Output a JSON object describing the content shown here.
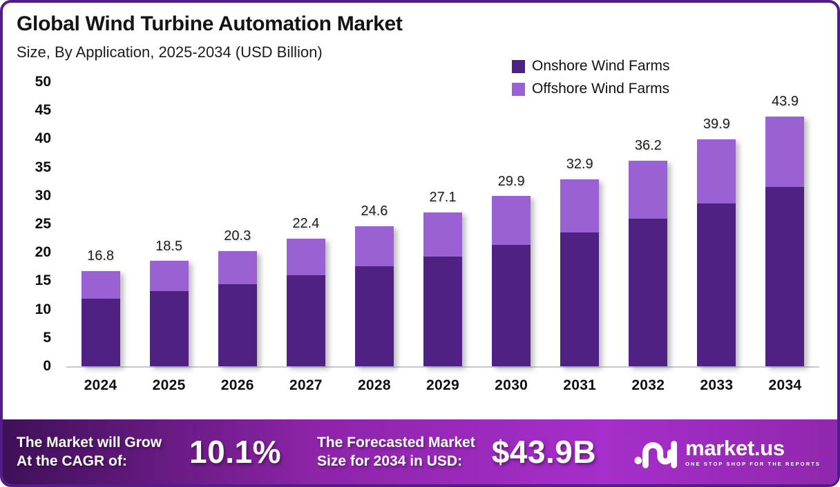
{
  "colors": {
    "frame_border": "#531b8c",
    "onshore": "#4f2182",
    "offshore": "#9a61d2",
    "axis_line": "#c9c9c9",
    "banner_gradient": [
      "#3f1058",
      "#8e24aa",
      "#a62ecb",
      "#9027ad"
    ],
    "banner_text": "#ffffff"
  },
  "chart_data": {
    "type": "bar",
    "stacked": true,
    "title": "Global Wind Turbine Automation Market",
    "subtitle": "Size, By Application, 2025-2034 (USD Billion)",
    "categories": [
      "2024",
      "2025",
      "2026",
      "2027",
      "2028",
      "2029",
      "2030",
      "2031",
      "2032",
      "2033",
      "2034"
    ],
    "series": [
      {
        "name": "Onshore Wind Farms",
        "color": "#4f2182",
        "values": [
          11.9,
          13.2,
          14.5,
          16.0,
          17.6,
          19.3,
          21.3,
          23.5,
          26.0,
          28.6,
          31.5
        ]
      },
      {
        "name": "Offshore Wind Farms",
        "color": "#9a61d2",
        "values": [
          4.9,
          5.3,
          5.8,
          6.4,
          7.0,
          7.8,
          8.6,
          9.4,
          10.2,
          11.3,
          12.4
        ]
      }
    ],
    "totals": [
      16.8,
      18.5,
      20.3,
      22.4,
      24.6,
      27.1,
      29.9,
      32.9,
      36.2,
      39.9,
      43.9
    ],
    "total_labels": [
      "16.8",
      "18.5",
      "20.3",
      "22.4",
      "24.6",
      "27.1",
      "29.9",
      "32.9",
      "36.2",
      "39.9",
      "43.9"
    ],
    "ylim": [
      0,
      50
    ],
    "ytick_step": 5,
    "grid": false,
    "legend_position": "top-right"
  },
  "banner": {
    "cagr_label_line1": "The Market will Grow",
    "cagr_label_line2": "At the CAGR of:",
    "cagr_value": "10.1%",
    "forecast_label_line1": "The Forecasted Market",
    "forecast_label_line2": "Size for 2034 in USD:",
    "forecast_value": "$43.9B",
    "brand": {
      "name": "market.us",
      "tagline": "ONE STOP SHOP FOR THE REPORTS"
    }
  }
}
